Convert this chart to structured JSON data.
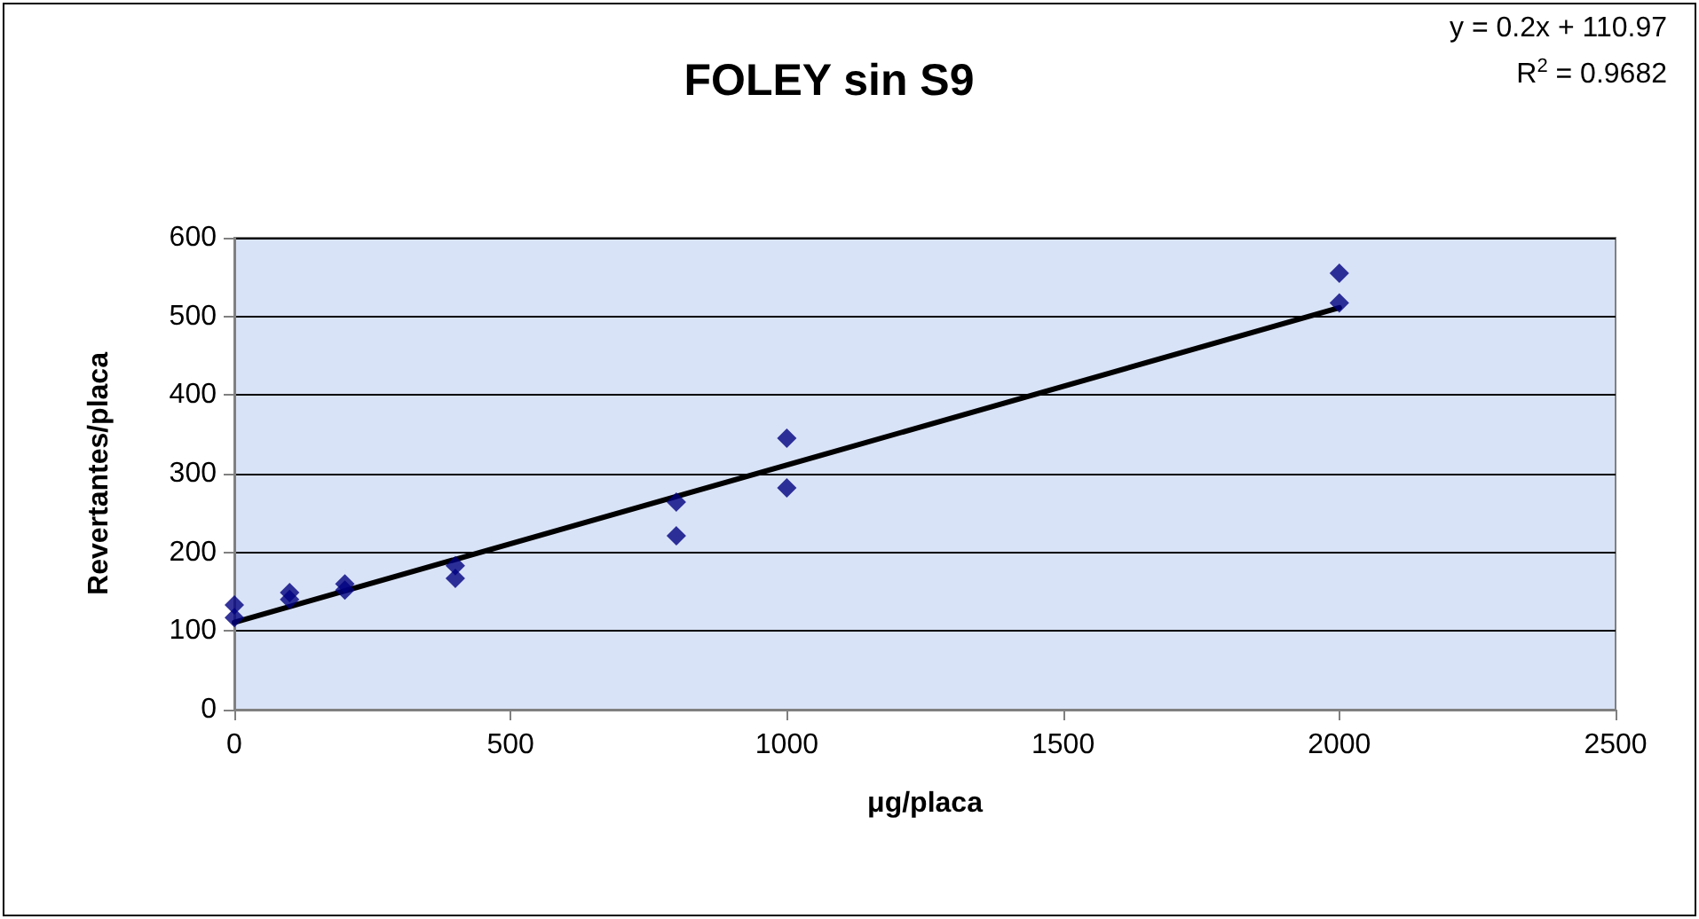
{
  "chart_data": {
    "type": "scatter",
    "title": "FOLEY sin S9",
    "xlabel": "μg/placa",
    "ylabel": "Revertantes/placa",
    "annotations": [
      "y = 0.2x + 110.97",
      "R$^{2}$ = 0.9682"
    ],
    "series": [
      {
        "color": "#000080",
        "marker": "diamond",
        "x": [
          0,
          0,
          100,
          100,
          200,
          200,
          400,
          400,
          800,
          800,
          1000,
          1000,
          2000,
          2000
        ],
        "values": [
          133,
          117,
          149,
          140,
          160,
          152,
          183,
          167,
          264,
          221,
          345,
          282,
          555,
          517
        ]
      },
      {
        "type": "line",
        "color": "#000000",
        "marker": "none",
        "line_style": "solid",
        "x": [
          0,
          2000
        ],
        "values": [
          111,
          511
        ]
      }
    ],
    "xlim": [
      0,
      2500
    ],
    "xticks": [
      0,
      500,
      1000,
      1500,
      2000,
      2500
    ],
    "ylim": [
      0,
      600
    ],
    "yticks": [
      0,
      100,
      200,
      300,
      400,
      500,
      600
    ],
    "grid": "y"
  }
}
